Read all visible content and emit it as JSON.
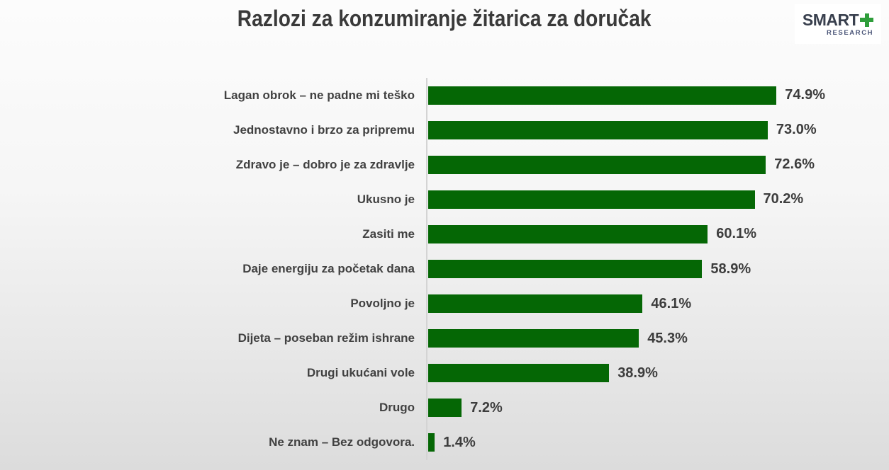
{
  "page": {
    "title": "Razlozi za konzumiranje žitarica za doručak",
    "logo": {
      "brand": "SMART",
      "plus_icon": "green-plus",
      "subtitle": "RESEARCH"
    }
  },
  "colors": {
    "bar_green": "#056705",
    "title_text": "#3a3a3a",
    "label_text": "#414141",
    "value_text": "#3d3d3d",
    "axis_line": "#d4d4d4",
    "logo_navy": "#39404e",
    "logo_green": "#2f9e3b",
    "background_top": "#fcfcfc",
    "background_bottom": "#dcdcdc"
  },
  "chart_data": {
    "type": "bar",
    "orientation": "horizontal",
    "title": "Razlozi za konzumiranje žitarica za doručak",
    "categories": [
      "Lagan obrok – ne padne mi teško",
      "Jednostavno i brzo za pripremu",
      "Zdravo je – dobro je za zdravlje",
      "Ukusno je",
      "Zasiti me",
      "Daje energiju za početak dana",
      "Povoljno je",
      "Dijeta – poseban režim ishrane",
      "Drugi ukućani vole",
      "Drugo",
      "Ne znam – Bez odgovora."
    ],
    "values": [
      74.9,
      73.0,
      72.6,
      70.2,
      60.1,
      58.9,
      46.1,
      45.3,
      38.9,
      7.2,
      1.4
    ],
    "value_labels": [
      "74.9%",
      "73.0%",
      "72.6%",
      "70.2%",
      "60.1%",
      "58.9%",
      "46.1%",
      "45.3%",
      "38.9%",
      "7.2%",
      "1.4%"
    ],
    "unit": "%",
    "xlim": [
      0,
      100
    ],
    "grid": false,
    "legend": false,
    "bar_color": "#056705"
  }
}
